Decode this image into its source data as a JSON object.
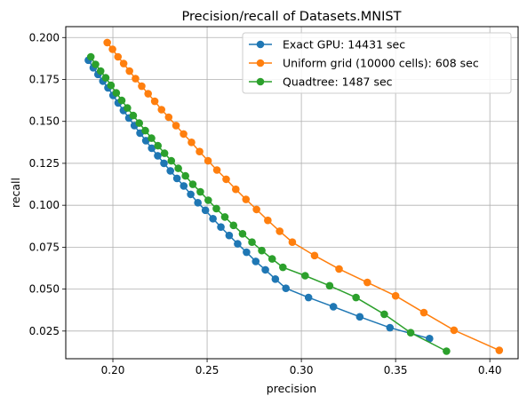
{
  "chart_data": {
    "type": "line",
    "title": "Precision/recall of Datasets.MNIST",
    "xlabel": "precision",
    "ylabel": "recall",
    "xlim": [
      0.175,
      0.415
    ],
    "ylim": [
      0.0085,
      0.2065
    ],
    "xticks": [
      0.2,
      0.25,
      0.3,
      0.35,
      0.4
    ],
    "xtick_labels": [
      "0.20",
      "0.25",
      "0.30",
      "0.35",
      "0.40"
    ],
    "yticks": [
      0.025,
      0.05,
      0.075,
      0.1,
      0.125,
      0.15,
      0.175,
      0.2
    ],
    "ytick_labels": [
      "0.025",
      "0.050",
      "0.075",
      "0.100",
      "0.125",
      "0.150",
      "0.175",
      "0.200"
    ],
    "grid": true,
    "legend_position": "top-right",
    "series": [
      {
        "name": "Exact GPU: 14431 sec",
        "color": "#1f77b4",
        "x": [
          0.187,
          0.1896,
          0.1921,
          0.1947,
          0.1974,
          0.2001,
          0.2028,
          0.2056,
          0.2085,
          0.2114,
          0.2144,
          0.2175,
          0.2206,
          0.2238,
          0.2271,
          0.2305,
          0.234,
          0.2376,
          0.2413,
          0.2451,
          0.2491,
          0.2531,
          0.2573,
          0.2617,
          0.2662,
          0.2709,
          0.2758,
          0.2809,
          0.2862,
          0.2918,
          0.3038,
          0.317,
          0.331,
          0.347,
          0.368
        ],
        "y": [
          0.1865,
          0.182,
          0.178,
          0.174,
          0.17,
          0.1655,
          0.161,
          0.1565,
          0.152,
          0.1475,
          0.143,
          0.1385,
          0.134,
          0.1295,
          0.125,
          0.1205,
          0.116,
          0.1115,
          0.1065,
          0.1015,
          0.097,
          0.092,
          0.087,
          0.082,
          0.077,
          0.072,
          0.0665,
          0.0615,
          0.056,
          0.0505,
          0.045,
          0.0395,
          0.0335,
          0.027,
          0.0205
        ]
      },
      {
        "name": "Uniform grid (10000 cells): 608 sec",
        "color": "#ff7f0e",
        "x": [
          0.197,
          0.1998,
          0.2027,
          0.2057,
          0.2088,
          0.212,
          0.2153,
          0.2187,
          0.2222,
          0.2258,
          0.2296,
          0.2335,
          0.2375,
          0.2417,
          0.246,
          0.2505,
          0.2552,
          0.2601,
          0.2652,
          0.2706,
          0.2762,
          0.2822,
          0.2885,
          0.2952,
          0.307,
          0.32,
          0.335,
          0.35,
          0.365,
          0.381,
          0.405
        ],
        "y": [
          0.197,
          0.193,
          0.1885,
          0.1845,
          0.18,
          0.1755,
          0.171,
          0.1665,
          0.162,
          0.157,
          0.1525,
          0.1475,
          0.1425,
          0.1375,
          0.132,
          0.1265,
          0.121,
          0.1155,
          0.1095,
          0.1035,
          0.0975,
          0.091,
          0.0845,
          0.078,
          0.07,
          0.062,
          0.054,
          0.046,
          0.036,
          0.0255,
          0.0135
        ]
      },
      {
        "name": "Quadtree: 1487 sec",
        "color": "#2ca02c",
        "x": [
          0.1883,
          0.1908,
          0.1935,
          0.1962,
          0.199,
          0.2018,
          0.2047,
          0.2077,
          0.2108,
          0.214,
          0.2172,
          0.2205,
          0.2239,
          0.2274,
          0.231,
          0.2347,
          0.2385,
          0.2424,
          0.2464,
          0.2506,
          0.2549,
          0.2594,
          0.264,
          0.2688,
          0.2738,
          0.279,
          0.2845,
          0.2902,
          0.302,
          0.315,
          0.329,
          0.344,
          0.358,
          0.377
        ],
        "y": [
          0.1885,
          0.184,
          0.18,
          0.176,
          0.1715,
          0.167,
          0.1625,
          0.158,
          0.1535,
          0.149,
          0.1445,
          0.14,
          0.1355,
          0.131,
          0.1265,
          0.122,
          0.1175,
          0.1125,
          0.108,
          0.103,
          0.098,
          0.093,
          0.088,
          0.083,
          0.078,
          0.073,
          0.068,
          0.063,
          0.058,
          0.052,
          0.045,
          0.035,
          0.024,
          0.013
        ]
      }
    ]
  }
}
